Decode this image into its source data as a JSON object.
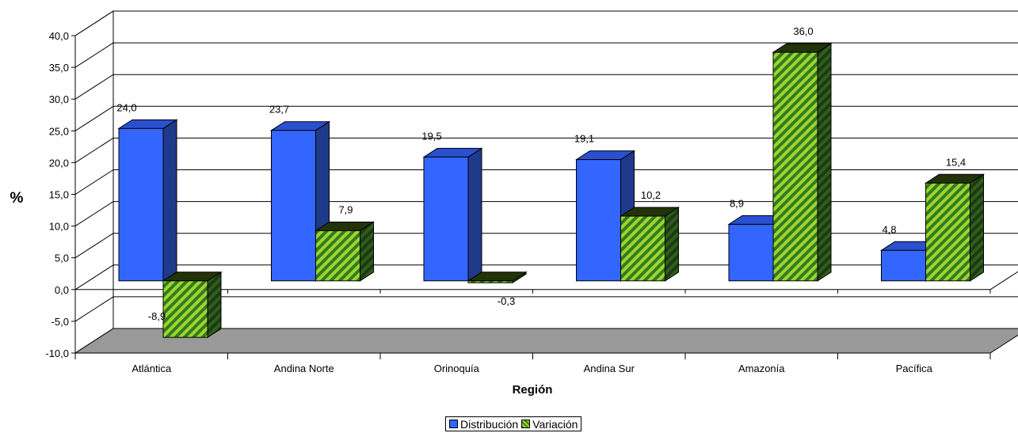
{
  "chart_data": {
    "type": "bar",
    "categories": [
      "Atlántica",
      "Andina Norte",
      "Orinoquía",
      "Andina Sur",
      "Amazonía",
      "Pacífica"
    ],
    "series": [
      {
        "name": "Distribución",
        "values": [
          24.0,
          23.7,
          19.5,
          19.1,
          8.9,
          4.8
        ]
      },
      {
        "name": "Variación",
        "values": [
          -8.9,
          7.9,
          -0.3,
          10.2,
          36.0,
          15.4
        ]
      }
    ],
    "value_labels": [
      [
        "24,0",
        "23,7",
        "19,5",
        "19,1",
        "8,9",
        "4,8"
      ],
      [
        "-8,9",
        "7,9",
        "-0,3",
        "10,2",
        "36,0",
        "15,4"
      ]
    ],
    "y_ticks": [
      "-10,0",
      "-5,0",
      "0,0",
      "5,0",
      "10,0",
      "15,0",
      "20,0",
      "25,0",
      "30,0",
      "35,0",
      "40,0"
    ],
    "ylim": [
      -10,
      40
    ],
    "y_step": 5,
    "xlabel": "Región",
    "ylabel": "%",
    "style": "3d",
    "grid": true,
    "legend_position": "bottom",
    "colors": {
      "series_front": [
        "#3366ff",
        "#9ccc2c"
      ],
      "series_top": [
        "#2a50d0",
        "#223308"
      ],
      "series_side": [
        "#1f3a8a",
        "#244f1a"
      ],
      "hatch_dark": "#2e7d22",
      "floor": "#999999"
    }
  }
}
